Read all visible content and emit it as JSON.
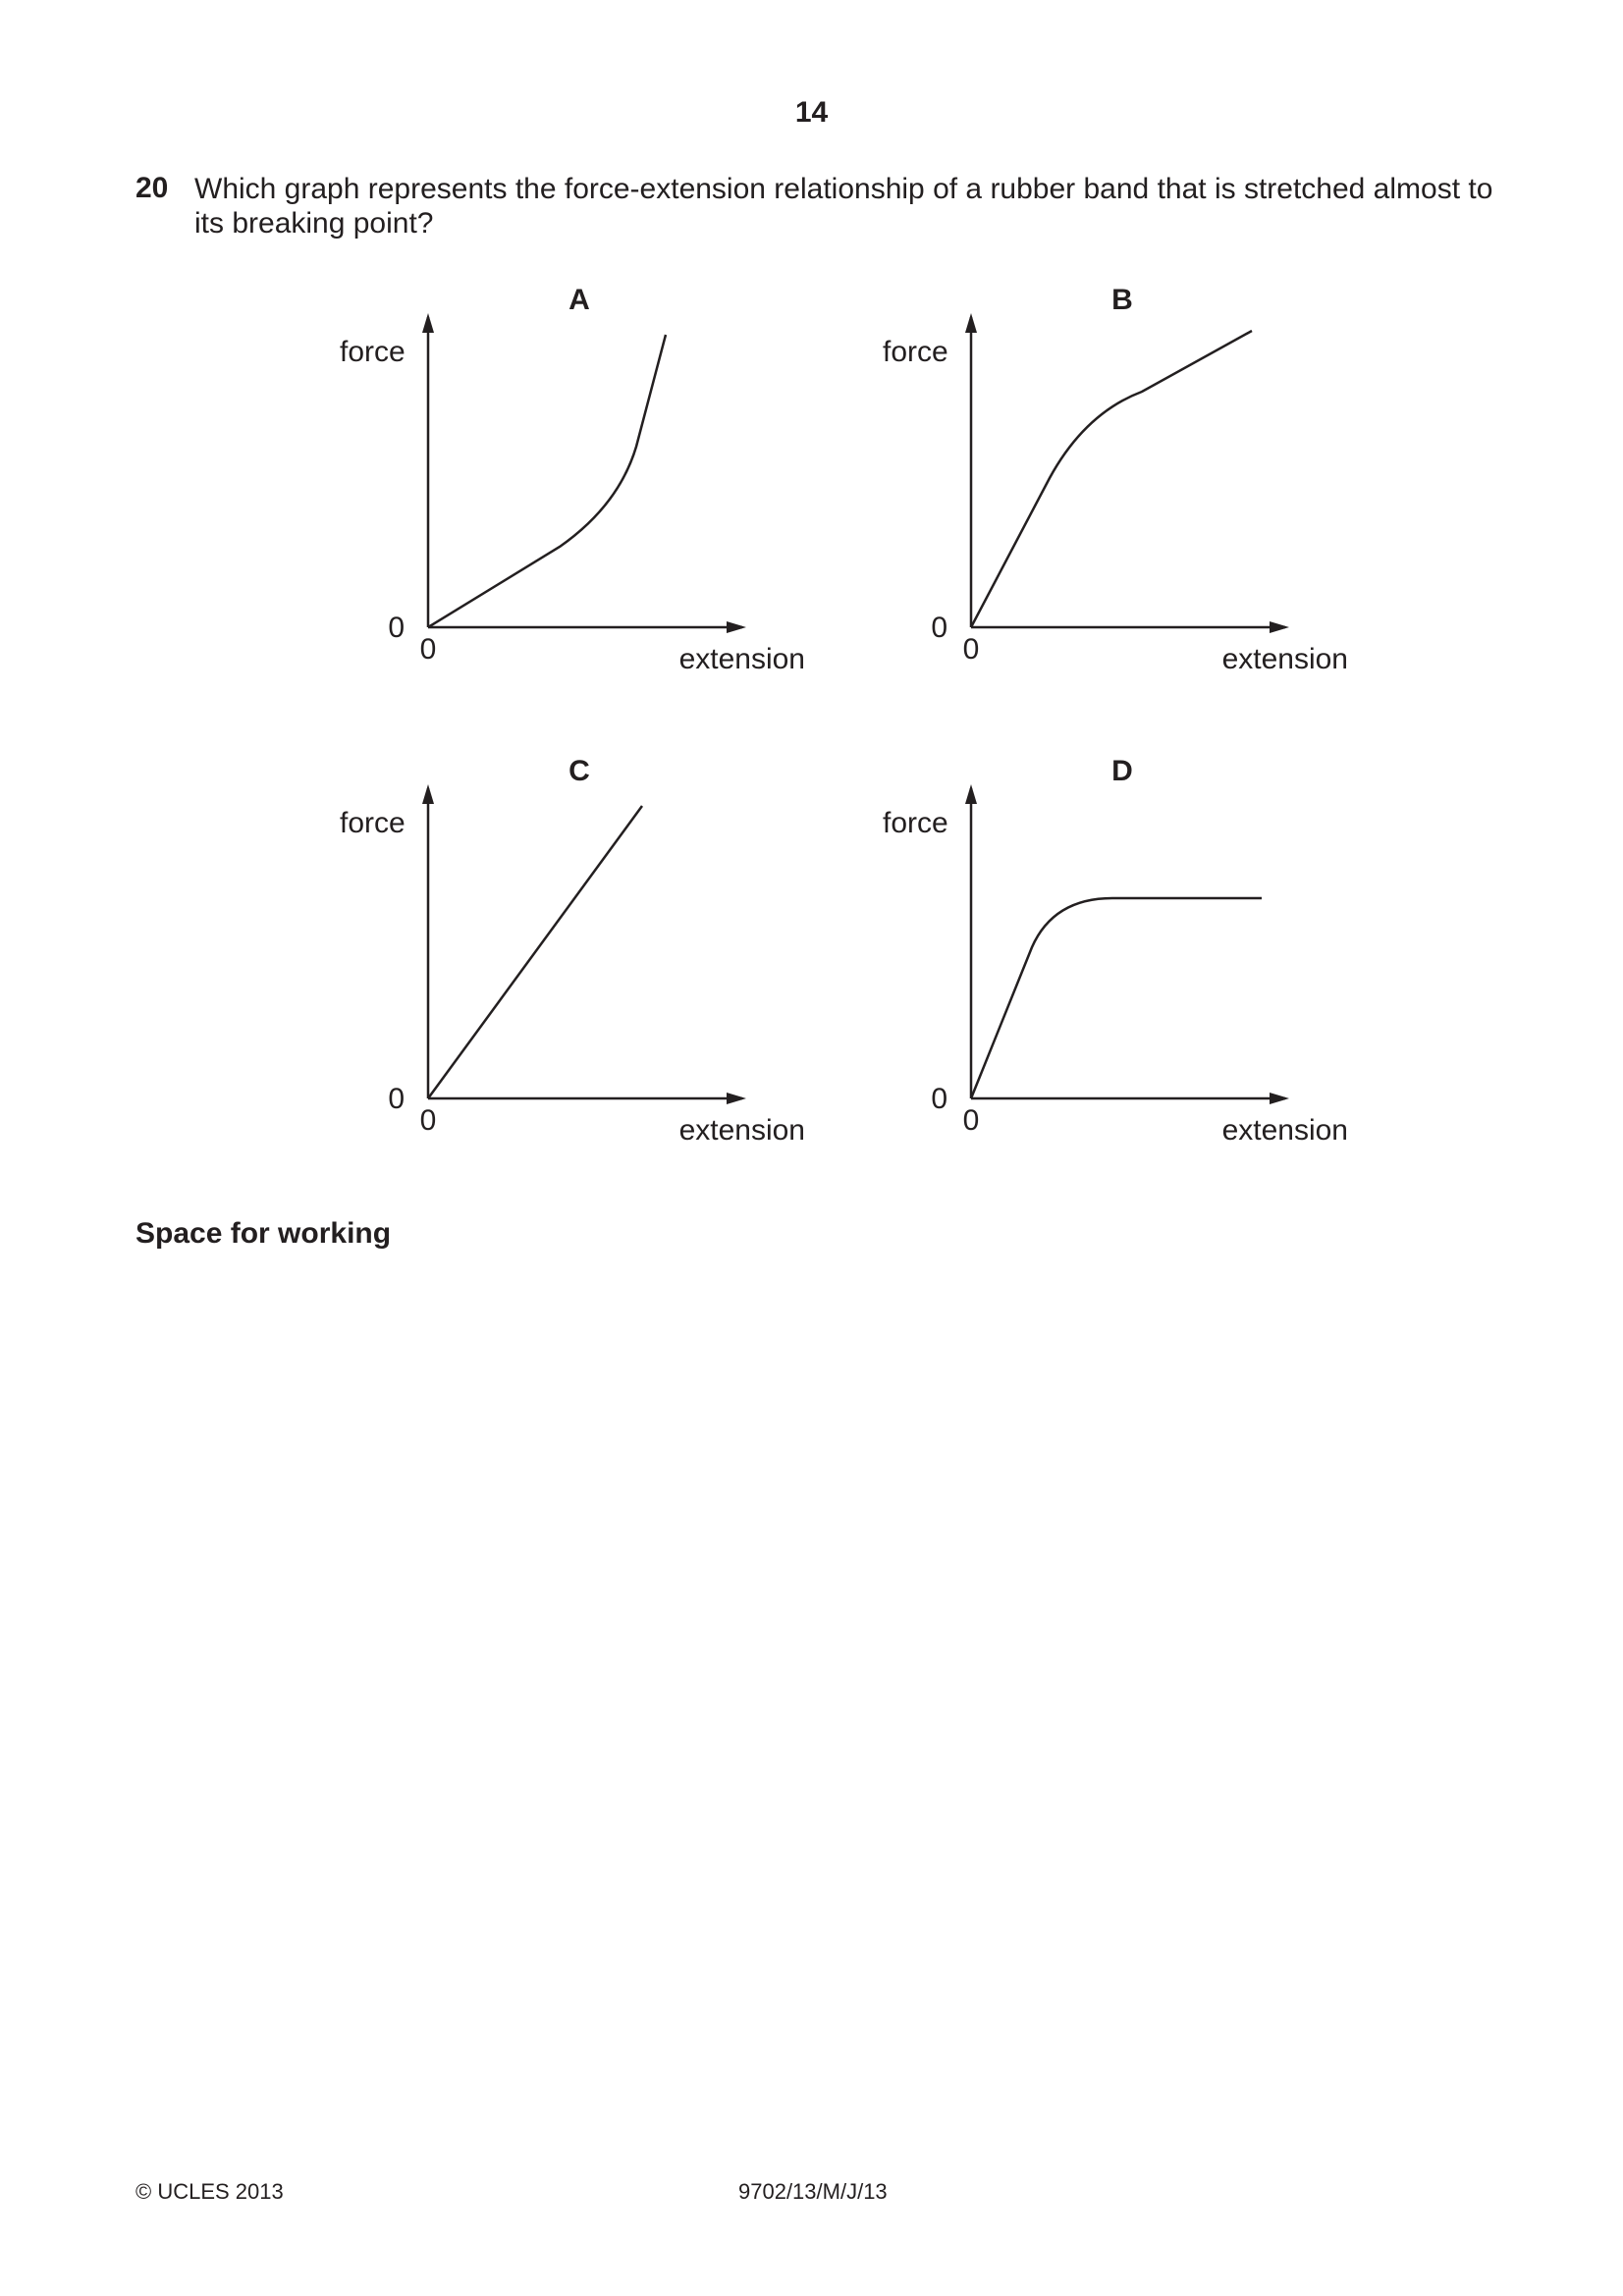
{
  "page_number": "14",
  "question": {
    "number": "20",
    "text": "Which graph represents the force-extension relationship of a rubber band that is stretched almost to its breaking point?"
  },
  "graphs": [
    {
      "label": "A",
      "y_axis_label": "force",
      "x_axis_label": "extension",
      "y_origin": "0",
      "x_origin": "0",
      "curve_shape": "linear then curving upward steeply"
    },
    {
      "label": "B",
      "y_axis_label": "force",
      "x_axis_label": "extension",
      "y_origin": "0",
      "x_origin": "0",
      "curve_shape": "steep linear then curving to shallower linear"
    },
    {
      "label": "C",
      "y_axis_label": "force",
      "x_axis_label": "extension",
      "y_origin": "0",
      "x_origin": "0",
      "curve_shape": "straight line through origin"
    },
    {
      "label": "D",
      "y_axis_label": "force",
      "x_axis_label": "extension",
      "y_origin": "0",
      "x_origin": "0",
      "curve_shape": "steep linear then levelling off horizontal"
    }
  ],
  "working_label": "Space for working",
  "footer": {
    "copyright": "© UCLES 2013",
    "code": "9702/13/M/J/13"
  },
  "colors": {
    "ink": "#231f20",
    "background": "#ffffff"
  }
}
